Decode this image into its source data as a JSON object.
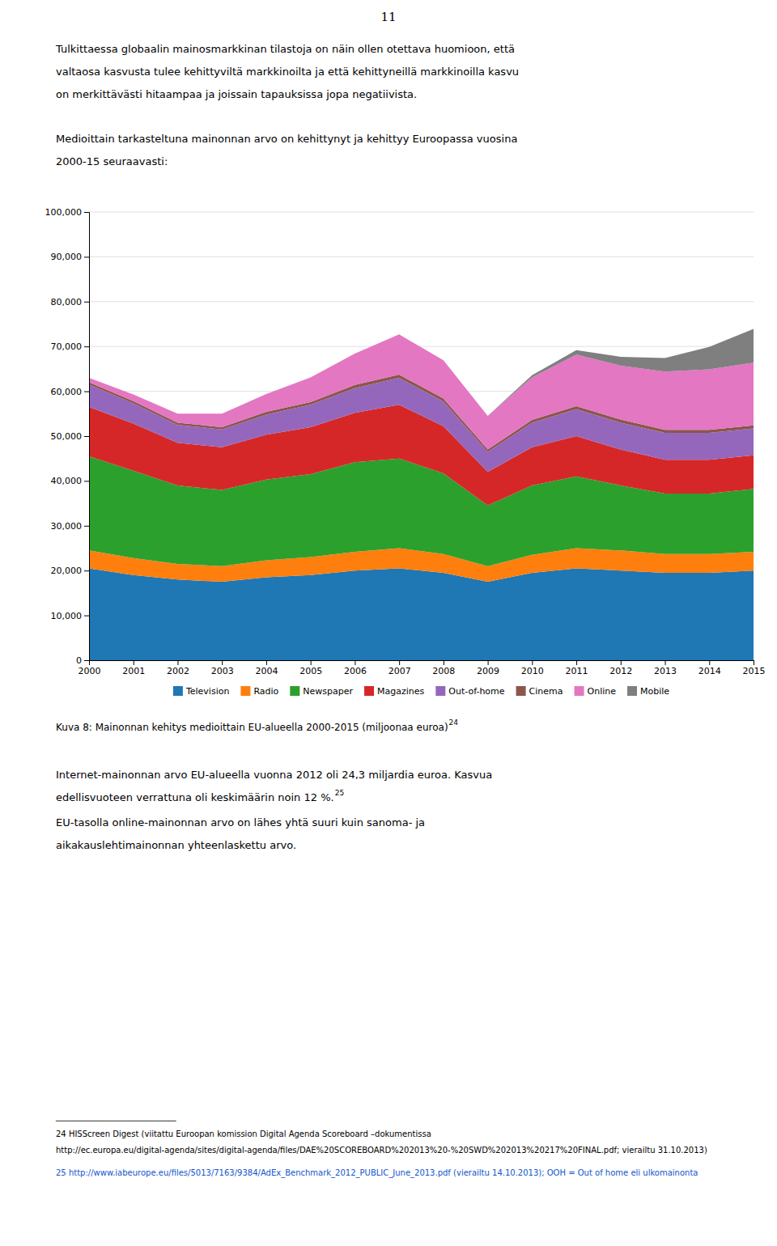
{
  "page_number": "11",
  "intro": [
    "Tulkittaessa globaalin mainosmarkkinan tilastoja on näin ollen otettava huomioon, että",
    "valtaosa kasvusta tulee kehittyviltä markkinoilta ja että kehittyneillä markkinoilla kasvu",
    "on merkittävästi hitaampaa ja joissain tapauksissa jopa negatiivista."
  ],
  "subtext": [
    "Medioittain tarkasteltuna mainonnan arvo on kehittynyt ja kehittyy Euroopassa vuosina",
    "2000-15 seuraavasti:"
  ],
  "chart_data": {
    "type": "area",
    "stacked": true,
    "title": "Kuva 8: Mainonnan kehitys medioittain EU-alueella 2000-2015 (miljoonaa euroa)",
    "x": [
      2000,
      2001,
      2002,
      2003,
      2004,
      2005,
      2006,
      2007,
      2008,
      2009,
      2010,
      2011,
      2012,
      2013,
      2014,
      2015
    ],
    "series": [
      {
        "name": "Television",
        "values": [
          20500,
          19000,
          18000,
          17500,
          18500,
          19000,
          20000,
          20500,
          19500,
          17500,
          19500,
          20500,
          20000,
          19500,
          19500,
          20000
        ]
      },
      {
        "name": "Radio",
        "values": [
          4000,
          3800,
          3500,
          3500,
          3800,
          4000,
          4200,
          4500,
          4200,
          3500,
          4000,
          4500,
          4500,
          4200,
          4200,
          4200
        ]
      },
      {
        "name": "Newspaper",
        "values": [
          21000,
          19500,
          17500,
          17000,
          18000,
          18500,
          20000,
          20000,
          18000,
          13500,
          15500,
          16000,
          14500,
          13500,
          13500,
          14000
        ]
      },
      {
        "name": "Magazines",
        "values": [
          11000,
          10500,
          9500,
          9500,
          10000,
          10500,
          11000,
          12000,
          10500,
          7500,
          8500,
          9000,
          8000,
          7500,
          7500,
          7500
        ]
      },
      {
        "name": "Out-of-home",
        "values": [
          5000,
          4500,
          4000,
          4000,
          4500,
          5000,
          5500,
          6000,
          5500,
          4500,
          5500,
          6000,
          6000,
          6000,
          6000,
          6000
        ]
      },
      {
        "name": "Cinema",
        "values": [
          500,
          500,
          500,
          500,
          600,
          600,
          700,
          700,
          700,
          500,
          600,
          700,
          700,
          700,
          700,
          700
        ]
      },
      {
        "name": "Online",
        "values": [
          1000,
          1500,
          2000,
          3000,
          4000,
          5500,
          7000,
          9000,
          8500,
          7500,
          9500,
          11500,
          12000,
          13000,
          13500,
          14000
        ]
      },
      {
        "name": "Mobile",
        "values": [
          0,
          0,
          0,
          0,
          0,
          0,
          0,
          0,
          0,
          0,
          500,
          1000,
          2000,
          3000,
          5000,
          7500
        ]
      }
    ],
    "xlim": [
      2000,
      2015
    ],
    "xticks": [
      2000,
      2001,
      2002,
      2003,
      2004,
      2005,
      2006,
      2007,
      2008,
      2009,
      2010,
      2011,
      2012,
      2013,
      2014,
      2015
    ],
    "ylim": [
      0,
      100000
    ],
    "yticks": [
      0,
      {
        "value": 10000,
        "label": "10,000"
      },
      {
        "value": 20000,
        "label": "20,000"
      },
      {
        "value": 30000,
        "label": "30,000"
      },
      {
        "value": 40000,
        "label": "40,000"
      },
      {
        "value": 50000,
        "label": "50,000"
      },
      {
        "value": 60000,
        "label": "60,000"
      },
      {
        "value": 70000,
        "label": "70,000"
      },
      {
        "value": 80000,
        "label": "80,000"
      },
      {
        "value": 90000,
        "label": "90,000"
      },
      {
        "value": 100000,
        "label": "100,000"
      }
    ],
    "grid": true,
    "legend": "bottom"
  },
  "caption_note": "24",
  "body": [
    [
      "Internet-mainonnan arvo EU-alueella vuonna 2012 oli 24,3 miljardia euroa. Kasvua",
      "edellisvuoteen verrattuna oli keskimäärin noin 12 %."
    ],
    [
      "EU-tasolla online-mainonnan arvo on lähes yhtä suuri kuin sanoma- ja",
      "aikakauslehtimainonnan yhteenlaskettu arvo."
    ]
  ],
  "body_note": "25",
  "footnote_rule": "___________________________",
  "footnotes": [
    {
      "text": "24 HISScreen Digest (viitattu Euroopan komission Digital Agenda Scoreboard –dokumentissa"
    },
    {
      "text": "http://ec.europa.eu/digital-agenda/sites/digital-agenda/files/DAE%20SCOREBOARD%202013%20-%20SWD%202013%20217%20FINAL.pdf; vierailtu 31.10.2013)"
    },
    {
      "text": "25 http://www.iabeurope.eu/files/5013/7163/9384/AdEx_Benchmark_2012_PUBLIC_June_2013.pdf (vierailtu 14.10.2013); OOH = Out of home eli ulkomainonta",
      "color": "#1155CC"
    }
  ]
}
